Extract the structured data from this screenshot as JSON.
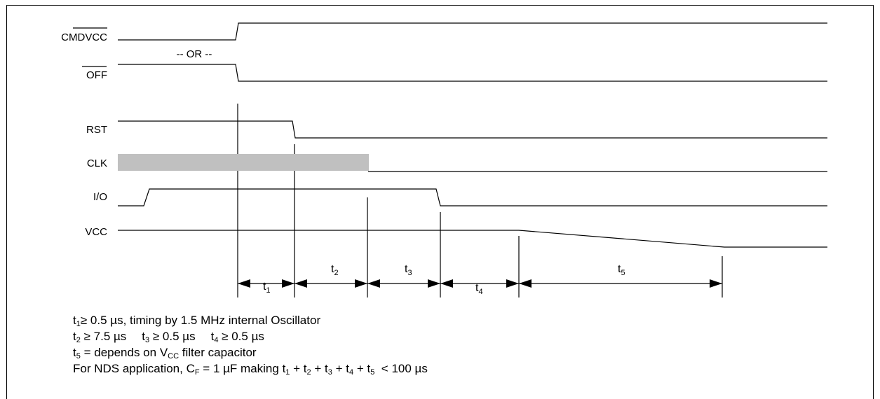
{
  "signals": {
    "cmdvcc": "CMDVCC",
    "or_text": "-- OR --",
    "off": "OFF",
    "rst": "RST",
    "clk": "CLK",
    "io": "I/O",
    "vcc": "VCC"
  },
  "intervals": [
    {
      "base": "t",
      "sub": "1"
    },
    {
      "base": "t",
      "sub": "2"
    },
    {
      "base": "t",
      "sub": "3"
    },
    {
      "base": "t",
      "sub": "4"
    },
    {
      "base": "t",
      "sub": "5"
    }
  ],
  "notes": {
    "line1": {
      "t": "t",
      "s": "1",
      "rest": "≥ 0.5 µs, timing by 1.5 MHz internal Oscillator"
    },
    "line2": [
      {
        "t": "t",
        "s": "2",
        "rest": " ≥ 7.5 µs"
      },
      {
        "t": "t",
        "s": "3",
        "rest": " ≥ 0.5 µs"
      },
      {
        "t": "t",
        "s": "4",
        "rest": " ≥ 0.5 µs"
      }
    ],
    "line3": {
      "t": "t",
      "s": "5",
      "pre": " = depends on V",
      "vsub": "CC",
      "post": " filter capacitor"
    },
    "line4": {
      "pre": "For NDS application, C",
      "csub": "F",
      "mid": " = 1 µF making ",
      "sum": [
        {
          "t": "t",
          "s": "1",
          "op": " + "
        },
        {
          "t": "t",
          "s": "2",
          "op": " + "
        },
        {
          "t": "t",
          "s": "3",
          "op": " + "
        },
        {
          "t": "t",
          "s": "4",
          "op": " + "
        },
        {
          "t": "t",
          "s": "5",
          "op": "  < 100 µs"
        }
      ]
    }
  },
  "colors": {
    "line": "#000000",
    "clk_band": "#c0c0c0"
  }
}
